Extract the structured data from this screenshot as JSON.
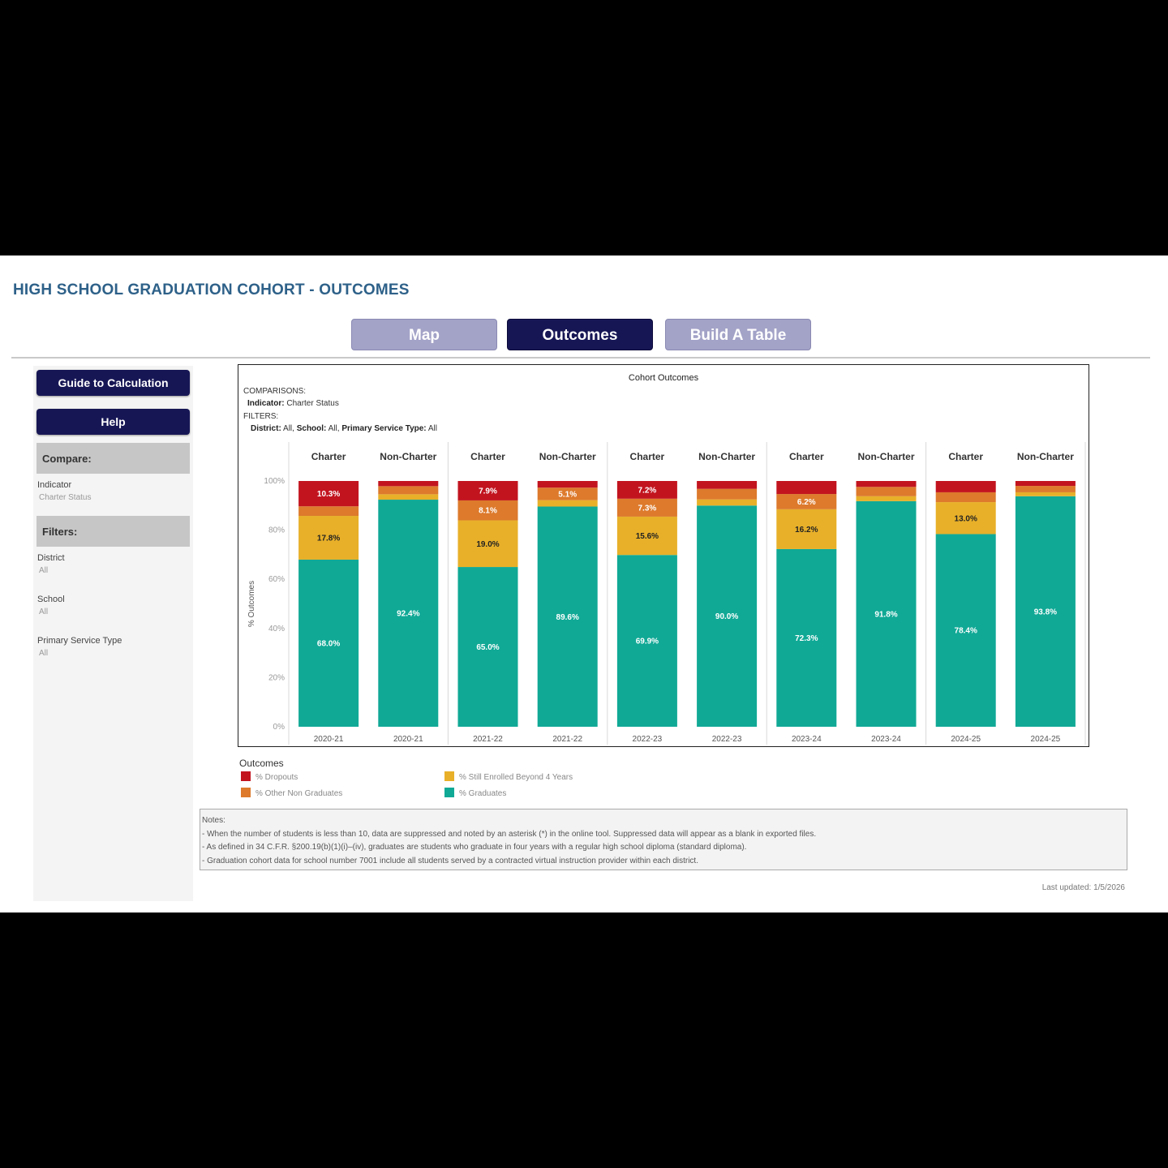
{
  "header": {
    "title": "HIGH SCHOOL GRADUATION COHORT - OUTCOMES"
  },
  "tabs": [
    {
      "label": "Map",
      "active": false
    },
    {
      "label": "Outcomes",
      "active": true
    },
    {
      "label": "Build A Table",
      "active": false
    }
  ],
  "sidebar": {
    "guide_label": "Guide to Calculation",
    "help_label": "Help",
    "compare_header": "Compare:",
    "indicator_label": "Indicator",
    "indicator_value": "Charter Status",
    "filters_header": "Filters:",
    "district_label": "District",
    "district_value": "All",
    "school_label": "School",
    "school_value": "All",
    "pst_label": "Primary Service Type",
    "pst_value": "All"
  },
  "chart_meta": {
    "comparisons_label": "COMPARISONS:",
    "indicator_key": "Indicator:",
    "indicator_val": "Charter Status",
    "filters_label": "FILTERS:",
    "district_key": "District:",
    "district_val": "All,",
    "school_key": "School:",
    "school_val": "All,",
    "pst_key": "Primary Service Type:",
    "pst_val": "All"
  },
  "chart_data": {
    "type": "bar",
    "stacked": true,
    "title": "Cohort Outcomes",
    "ylabel": "% Outcomes",
    "ylim": [
      0,
      100
    ],
    "yticks": [
      "0%",
      "20%",
      "40%",
      "60%",
      "80%",
      "100%"
    ],
    "ytick_values": [
      0,
      20,
      40,
      60,
      80,
      100
    ],
    "grid": false,
    "groups": [
      "Charter",
      "Non-Charter",
      "Charter",
      "Non-Charter",
      "Charter",
      "Non-Charter",
      "Charter",
      "Non-Charter",
      "Charter",
      "Non-Charter"
    ],
    "categories": [
      "2020-21",
      "2020-21",
      "2021-22",
      "2021-22",
      "2022-23",
      "2022-23",
      "2023-24",
      "2023-24",
      "2024-25",
      "2024-25"
    ],
    "series": [
      {
        "name": "% Graduates",
        "color": "#10a996",
        "values": [
          68.0,
          92.4,
          65.0,
          89.6,
          69.9,
          90.0,
          72.3,
          91.8,
          78.4,
          93.8
        ],
        "labels": [
          "68.0%",
          "92.4%",
          "65.0%",
          "89.6%",
          "69.9%",
          "90.0%",
          "72.3%",
          "91.8%",
          "78.4%",
          "93.8%"
        ]
      },
      {
        "name": "% Still Enrolled Beyond 4 Years",
        "color": "#e8b029",
        "values": [
          17.8,
          2.2,
          19.0,
          2.6,
          15.6,
          2.5,
          16.2,
          2.0,
          13.0,
          1.6
        ],
        "labels": [
          "17.8%",
          "",
          "19.0%",
          "",
          "15.6%",
          "",
          "16.2%",
          "",
          "13.0%",
          ""
        ]
      },
      {
        "name": "% Other Non Graduates",
        "color": "#dd7a2c",
        "values": [
          3.9,
          3.3,
          8.1,
          5.1,
          7.3,
          4.3,
          6.2,
          3.8,
          4.0,
          2.6
        ],
        "labels": [
          "",
          "",
          "8.1%",
          "5.1%",
          "7.3%",
          "",
          "6.2%",
          "",
          "",
          ""
        ]
      },
      {
        "name": "% Dropouts",
        "color": "#c2141f",
        "values": [
          10.3,
          2.1,
          7.9,
          2.7,
          7.2,
          3.2,
          5.3,
          2.4,
          4.6,
          2.0
        ],
        "labels": [
          "10.3%",
          "",
          "7.9%",
          "",
          "7.2%",
          "",
          "",
          "",
          "",
          ""
        ]
      }
    ],
    "legend_title": "Outcomes",
    "legend": [
      "% Dropouts",
      "% Still Enrolled Beyond 4 Years",
      "% Other Non Graduates",
      "% Graduates"
    ]
  },
  "legend_colors": {
    "dropouts": "#c2141f",
    "still": "#e8b029",
    "other": "#dd7a2c",
    "grads": "#10a996"
  },
  "notes": {
    "heading": "Notes:",
    "lines": [
      "- When the number of students is less than 10, data are suppressed and noted by an asterisk (*) in the online tool. Suppressed data will appear as a blank in exported files.",
      "- As defined in 34 C.F.R. §200.19(b)(1)(i)–(iv), graduates are students who graduate in four years with a regular high school diploma (standard diploma).",
      "- Graduation cohort data for school number 7001 include all students served by a contracted virtual instruction provider within each district."
    ]
  },
  "footer": {
    "last_updated": "Last updated: 1/5/2026"
  }
}
